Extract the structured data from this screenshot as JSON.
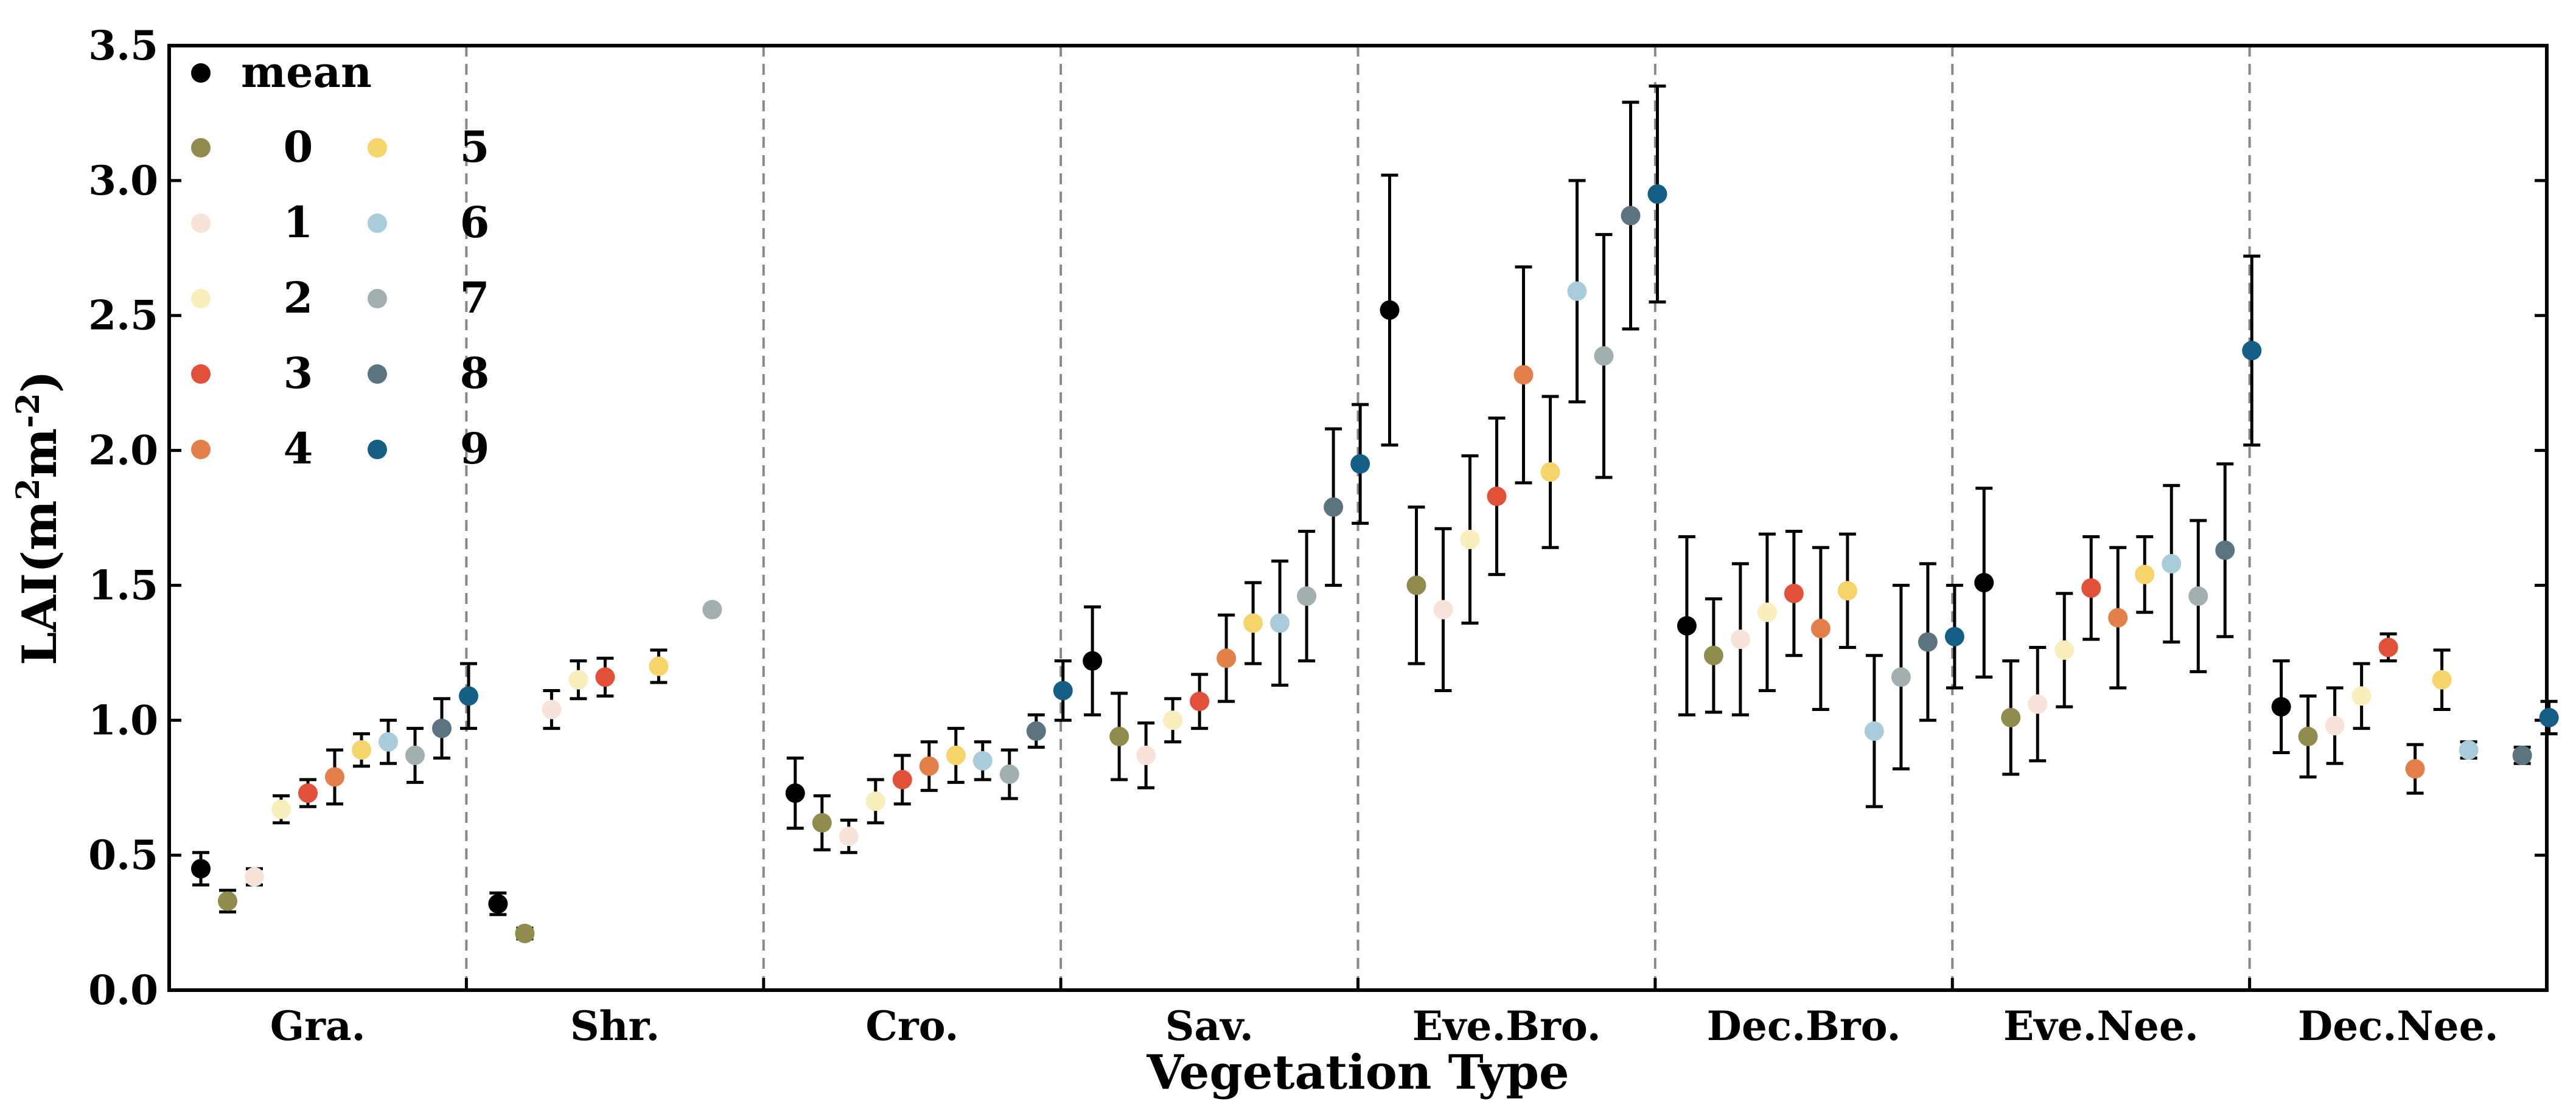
{
  "chart_data": {
    "type": "scatter",
    "title": "",
    "xlabel": "Vegetation Type",
    "ylabel_main": "LAI(m",
    "ylabel_sup1": "2",
    "ylabel_mid": "m",
    "ylabel_sup2": "-2",
    "ylabel_end": ")",
    "ylim": [
      0,
      3.5
    ],
    "yticks": [
      "0.0",
      "0.5",
      "1.0",
      "1.5",
      "2.0",
      "2.5",
      "3.0",
      "3.5"
    ],
    "categories": [
      "Gra.",
      "Shr.",
      "Cro.",
      "Sav.",
      "Eve.Bro.",
      "Dec.Bro.",
      "Eve.Nee.",
      "Dec.Nee."
    ],
    "legend": {
      "position": "top-left",
      "mean_label": "mean",
      "group_labels": [
        "0",
        "1",
        "2",
        "3",
        "4",
        "5",
        "6",
        "7",
        "8",
        "9"
      ]
    },
    "colors": {
      "mean": "#000000",
      "groups": [
        "#8f8c4e",
        "#f7e3d9",
        "#f7eebb",
        "#e2503a",
        "#e3804a",
        "#f5d46a",
        "#a8ccd9",
        "#a3aeb1",
        "#5c7480",
        "#155f85"
      ],
      "errorbar": "#000000",
      "separator": "#888888"
    },
    "series": [
      {
        "name": "Gra.",
        "points": [
          {
            "group": "mean",
            "value": 0.45,
            "err": 0.06
          },
          {
            "group": "0",
            "value": 0.33,
            "err": 0.04
          },
          {
            "group": "1",
            "value": 0.42,
            "err": 0.03
          },
          {
            "group": "2",
            "value": 0.67,
            "err": 0.05
          },
          {
            "group": "3",
            "value": 0.73,
            "err": 0.05
          },
          {
            "group": "4",
            "value": 0.79,
            "err": 0.1
          },
          {
            "group": "5",
            "value": 0.89,
            "err": 0.06
          },
          {
            "group": "6",
            "value": 0.92,
            "err": 0.08
          },
          {
            "group": "7",
            "value": 0.87,
            "err": 0.1
          },
          {
            "group": "8",
            "value": 0.97,
            "err": 0.11
          },
          {
            "group": "9",
            "value": 1.09,
            "err": 0.12
          }
        ]
      },
      {
        "name": "Shr.",
        "points": [
          {
            "group": "mean",
            "value": 0.32,
            "err": 0.04
          },
          {
            "group": "0",
            "value": 0.21,
            "err": 0.02
          },
          {
            "group": "1",
            "value": 1.04,
            "err": 0.07
          },
          {
            "group": "2",
            "value": 1.15,
            "err": 0.07
          },
          {
            "group": "3",
            "value": 1.16,
            "err": 0.07
          },
          {
            "group": "5",
            "value": 1.2,
            "err": 0.06
          },
          {
            "group": "7",
            "value": 1.41,
            "err": 0.0
          }
        ]
      },
      {
        "name": "Cro.",
        "points": [
          {
            "group": "mean",
            "value": 0.73,
            "err": 0.13
          },
          {
            "group": "0",
            "value": 0.62,
            "err": 0.1
          },
          {
            "group": "1",
            "value": 0.57,
            "err": 0.06
          },
          {
            "group": "2",
            "value": 0.7,
            "err": 0.08
          },
          {
            "group": "3",
            "value": 0.78,
            "err": 0.09
          },
          {
            "group": "4",
            "value": 0.83,
            "err": 0.09
          },
          {
            "group": "5",
            "value": 0.87,
            "err": 0.1
          },
          {
            "group": "6",
            "value": 0.85,
            "err": 0.07
          },
          {
            "group": "7",
            "value": 0.8,
            "err": 0.09
          },
          {
            "group": "8",
            "value": 0.96,
            "err": 0.06
          },
          {
            "group": "9",
            "value": 1.11,
            "err": 0.11
          }
        ]
      },
      {
        "name": "Sav.",
        "points": [
          {
            "group": "mean",
            "value": 1.22,
            "err": 0.2
          },
          {
            "group": "0",
            "value": 0.94,
            "err": 0.16
          },
          {
            "group": "1",
            "value": 0.87,
            "err": 0.12
          },
          {
            "group": "2",
            "value": 1.0,
            "err": 0.08
          },
          {
            "group": "3",
            "value": 1.07,
            "err": 0.1
          },
          {
            "group": "4",
            "value": 1.23,
            "err": 0.16
          },
          {
            "group": "5",
            "value": 1.36,
            "err": 0.15
          },
          {
            "group": "6",
            "value": 1.36,
            "err": 0.23
          },
          {
            "group": "7",
            "value": 1.46,
            "err": 0.24
          },
          {
            "group": "8",
            "value": 1.79,
            "err": 0.29
          },
          {
            "group": "9",
            "value": 1.95,
            "err": 0.22
          }
        ]
      },
      {
        "name": "Eve.Bro.",
        "points": [
          {
            "group": "mean",
            "value": 2.52,
            "err": 0.5
          },
          {
            "group": "0",
            "value": 1.5,
            "err": 0.29
          },
          {
            "group": "1",
            "value": 1.41,
            "err": 0.3
          },
          {
            "group": "2",
            "value": 1.67,
            "err": 0.31
          },
          {
            "group": "3",
            "value": 1.83,
            "err": 0.29
          },
          {
            "group": "4",
            "value": 2.28,
            "err": 0.4
          },
          {
            "group": "5",
            "value": 1.92,
            "err": 0.28
          },
          {
            "group": "6",
            "value": 2.59,
            "err": 0.41
          },
          {
            "group": "7",
            "value": 2.35,
            "err": 0.45
          },
          {
            "group": "8",
            "value": 2.87,
            "err": 0.42
          },
          {
            "group": "9",
            "value": 2.95,
            "err": 0.4
          }
        ]
      },
      {
        "name": "Dec.Bro.",
        "points": [
          {
            "group": "mean",
            "value": 1.35,
            "err": 0.33
          },
          {
            "group": "0",
            "value": 1.24,
            "err": 0.21
          },
          {
            "group": "1",
            "value": 1.3,
            "err": 0.28
          },
          {
            "group": "2",
            "value": 1.4,
            "err": 0.29
          },
          {
            "group": "3",
            "value": 1.47,
            "err": 0.23
          },
          {
            "group": "4",
            "value": 1.34,
            "err": 0.3
          },
          {
            "group": "5",
            "value": 1.48,
            "err": 0.21
          },
          {
            "group": "6",
            "value": 0.96,
            "err": 0.28
          },
          {
            "group": "7",
            "value": 1.16,
            "err": 0.34
          },
          {
            "group": "8",
            "value": 1.29,
            "err": 0.29
          },
          {
            "group": "9",
            "value": 1.31,
            "err": 0.19
          }
        ]
      },
      {
        "name": "Eve.Nee.",
        "points": [
          {
            "group": "mean",
            "value": 1.51,
            "err": 0.35
          },
          {
            "group": "0",
            "value": 1.01,
            "err": 0.21
          },
          {
            "group": "1",
            "value": 1.06,
            "err": 0.21
          },
          {
            "group": "2",
            "value": 1.26,
            "err": 0.21
          },
          {
            "group": "3",
            "value": 1.49,
            "err": 0.19
          },
          {
            "group": "4",
            "value": 1.38,
            "err": 0.26
          },
          {
            "group": "5",
            "value": 1.54,
            "err": 0.14
          },
          {
            "group": "6",
            "value": 1.58,
            "err": 0.29
          },
          {
            "group": "7",
            "value": 1.46,
            "err": 0.28
          },
          {
            "group": "8",
            "value": 1.63,
            "err": 0.32
          },
          {
            "group": "9",
            "value": 2.37,
            "err": 0.35
          }
        ]
      },
      {
        "name": "Dec.Nee.",
        "points": [
          {
            "group": "mean",
            "value": 1.05,
            "err": 0.17
          },
          {
            "group": "0",
            "value": 0.94,
            "err": 0.15
          },
          {
            "group": "1",
            "value": 0.98,
            "err": 0.14
          },
          {
            "group": "2",
            "value": 1.09,
            "err": 0.12
          },
          {
            "group": "3",
            "value": 1.27,
            "err": 0.05
          },
          {
            "group": "4",
            "value": 0.82,
            "err": 0.09
          },
          {
            "group": "5",
            "value": 1.15,
            "err": 0.11
          },
          {
            "group": "6",
            "value": 0.89,
            "err": 0.03
          },
          {
            "group": "8",
            "value": 0.87,
            "err": 0.03
          },
          {
            "group": "9",
            "value": 1.01,
            "err": 0.06
          }
        ]
      }
    ]
  }
}
